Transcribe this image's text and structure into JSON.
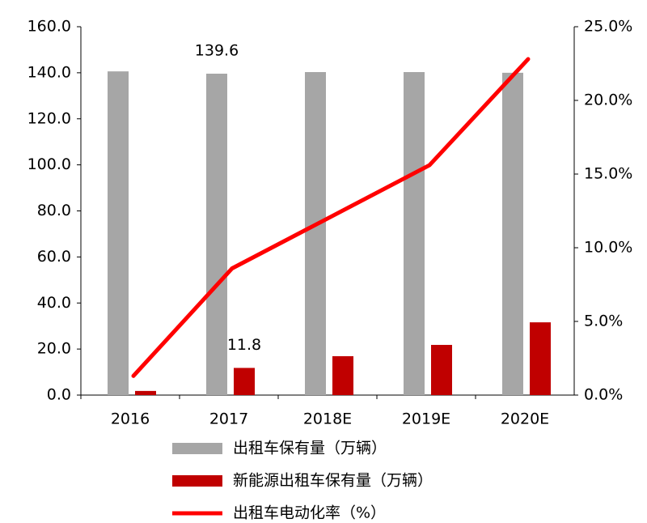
{
  "chart_data": {
    "type": "bar-line",
    "categories": [
      "2016",
      "2017",
      "2018E",
      "2019E",
      "2020E"
    ],
    "series": [
      {
        "name": "出租车保有量（万辆）",
        "type": "bar",
        "color": "#a6a6a6",
        "values": [
          140.6,
          139.6,
          140.3,
          140.3,
          140.0
        ],
        "value_labels": [
          null,
          "139.6",
          null,
          null,
          null
        ]
      },
      {
        "name": "新能源出租车保有量（万辆）",
        "type": "bar",
        "color": "#c00000",
        "values": [
          1.8,
          11.8,
          16.9,
          21.8,
          31.6
        ],
        "value_labels": [
          null,
          "11.8",
          null,
          null,
          null
        ]
      },
      {
        "name": "出租车电动化率（%）",
        "type": "line",
        "axis": "y2",
        "color": "#ff0000",
        "values": [
          1.3,
          8.6,
          12.1,
          15.6,
          22.8
        ]
      }
    ],
    "ylim": [
      0,
      160
    ],
    "yticks": [
      {
        "value": 0,
        "label": "0.0"
      },
      {
        "value": 20,
        "label": "20.0"
      },
      {
        "value": 40,
        "label": "40.0"
      },
      {
        "value": 60,
        "label": "60.0"
      },
      {
        "value": 80,
        "label": "80.0"
      },
      {
        "value": 100,
        "label": "100.0"
      },
      {
        "value": 120,
        "label": "120.0"
      },
      {
        "value": 140,
        "label": "140.0"
      },
      {
        "value": 160,
        "label": "160.0"
      }
    ],
    "y2lim": [
      0,
      25
    ],
    "y2ticks": [
      {
        "value": 0,
        "label": "0.0%"
      },
      {
        "value": 5,
        "label": "5.0%"
      },
      {
        "value": 10,
        "label": "10.0%"
      },
      {
        "value": 15,
        "label": "15.0%"
      },
      {
        "value": 20,
        "label": "20.0%"
      },
      {
        "value": 25,
        "label": "25.0%"
      }
    ],
    "grid": false,
    "legend": "bottom"
  }
}
